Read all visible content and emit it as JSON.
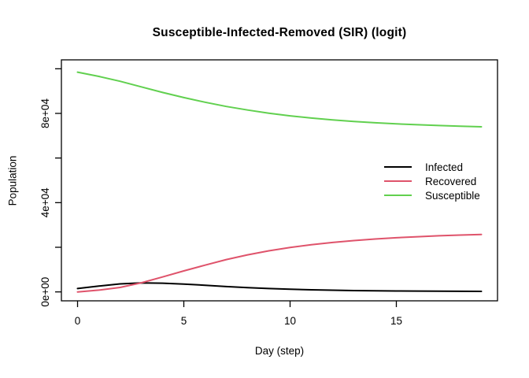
{
  "chart_data": {
    "type": "line",
    "title": "Susceptible-Infected-Removed (SIR) (logit)",
    "xlabel": "Day (step)",
    "ylabel": "Population",
    "x": [
      0,
      1,
      2,
      3,
      4,
      5,
      6,
      7,
      8,
      9,
      10,
      11,
      12,
      13,
      14,
      15,
      16,
      17,
      18,
      19
    ],
    "series": [
      {
        "name": "Infected",
        "color": "#000000",
        "values": [
          1500,
          2600,
          3600,
          4000,
          3900,
          3500,
          3000,
          2400,
          1900,
          1500,
          1200,
          950,
          750,
          600,
          500,
          420,
          360,
          310,
          270,
          240
        ]
      },
      {
        "name": "Recovered",
        "color": "#DF536B",
        "values": [
          0,
          800,
          2000,
          4100,
          6700,
          9400,
          12000,
          14500,
          16600,
          18400,
          19900,
          21150,
          22150,
          23000,
          23700,
          24280,
          24740,
          25140,
          25480,
          25760
        ]
      },
      {
        "name": "Susceptible",
        "color": "#61D04F",
        "values": [
          98500,
          96600,
          94400,
          91900,
          89400,
          87100,
          85000,
          83100,
          81500,
          80100,
          78900,
          77900,
          77100,
          76400,
          75800,
          75300,
          74900,
          74550,
          74250,
          74000
        ]
      }
    ],
    "xlim": [
      -0.76,
      19.76
    ],
    "ylim": [
      -4000,
      104000
    ],
    "x_ticks": [
      {
        "value": 0,
        "label": "0"
      },
      {
        "value": 5,
        "label": "5"
      },
      {
        "value": 10,
        "label": "10"
      },
      {
        "value": 15,
        "label": "15"
      }
    ],
    "y_ticks": [
      {
        "value": 0,
        "label": "0e+00"
      },
      {
        "value": 20000,
        "label": ""
      },
      {
        "value": 40000,
        "label": "4e+04"
      },
      {
        "value": 60000,
        "label": ""
      },
      {
        "value": 80000,
        "label": "8e+04"
      },
      {
        "value": 100000,
        "label": ""
      }
    ],
    "legend": {
      "position": "right-middle",
      "entries": [
        "Infected",
        "Recovered",
        "Susceptible"
      ]
    },
    "grid": false,
    "line_width": 2,
    "box_color": "#000000",
    "background": "#ffffff"
  }
}
